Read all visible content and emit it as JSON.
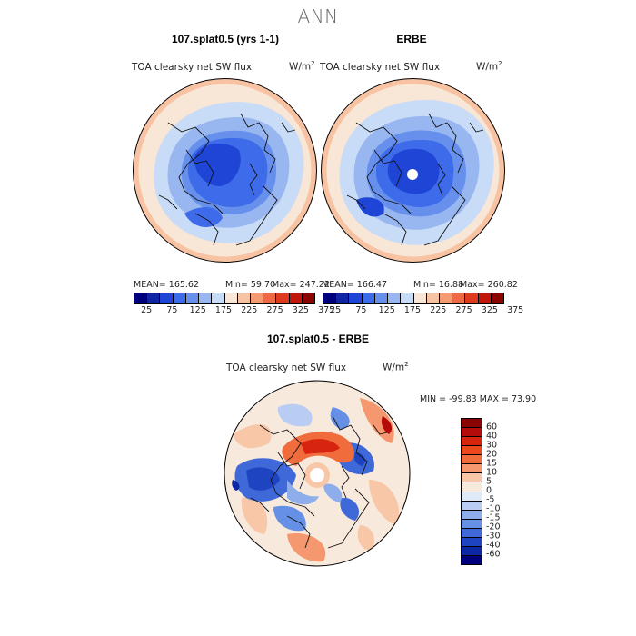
{
  "figure": {
    "title": "ANN"
  },
  "panels": [
    {
      "title": "107.splat0.5 (yrs 1-1)",
      "field": "TOA clearsky net SW flux",
      "units": "W/m",
      "units_exp": "2",
      "stats": {
        "mean": "MEAN= 165.62",
        "min": "Min=  59.70",
        "max": "Max= 247.22"
      }
    },
    {
      "title": "ERBE",
      "field": "TOA clearsky net SW flux",
      "units": "W/m",
      "units_exp": "2",
      "stats": {
        "mean": "MEAN= 166.47",
        "min": "Min=  16.88",
        "max": "Max= 260.82"
      }
    },
    {
      "title": "107.splat0.5 - ERBE",
      "field": "TOA clearsky net SW flux",
      "units": "W/m",
      "units_exp": "2",
      "stats": {
        "minmax": "MIN = -99.83 MAX =  73.90"
      }
    }
  ],
  "colorbar_abs": {
    "ticks": [
      "25",
      "75",
      "125",
      "175",
      "225",
      "275",
      "325",
      "375"
    ],
    "colors": [
      "#00007e",
      "#0f25a5",
      "#1f45d6",
      "#3d6be9",
      "#6790ec",
      "#98b6f0",
      "#c9dcf7",
      "#f8e6d6",
      "#f7c3a2",
      "#f59a72",
      "#ed6a44",
      "#de3a1f",
      "#c0160b",
      "#8a0502"
    ]
  },
  "colorbar_diff": {
    "labels": [
      "60",
      "40",
      "30",
      "20",
      "15",
      "10",
      "5",
      "0",
      "-5",
      "-10",
      "-15",
      "-20",
      "-30",
      "-40",
      "-60"
    ],
    "colors": [
      "#8a0502",
      "#b40c0b",
      "#d6240f",
      "#ea4919",
      "#f06c3d",
      "#f59870",
      "#f8c7a7",
      "#f8e9dd",
      "#dfe9f7",
      "#b9cdf2",
      "#8daeea",
      "#6690e5",
      "#3f68d8",
      "#1e44c2",
      "#0c27a4",
      "#00007e"
    ]
  }
}
